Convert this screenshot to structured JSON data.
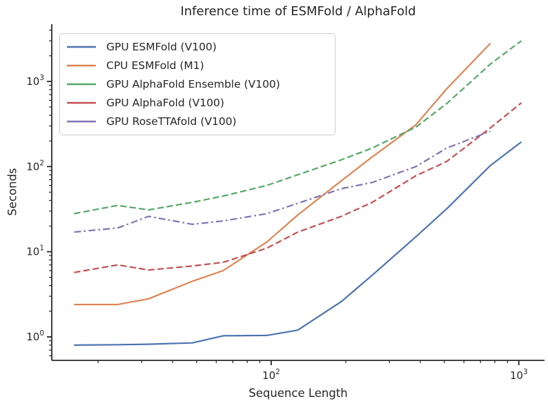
{
  "chart_data": {
    "type": "line",
    "title": "Inference time of ESMFold / AlphaFold",
    "xlabel": "Sequence Length",
    "ylabel": "Seconds",
    "x_scale": "log",
    "y_scale": "log",
    "grid": false,
    "legend_position": "upper left",
    "xlim": [
      13,
      1270
    ],
    "ylim": [
      0.53,
      4700
    ],
    "x": [
      16,
      24,
      32,
      48,
      64,
      96,
      128,
      192,
      256,
      384,
      512,
      768,
      1024
    ],
    "series": [
      {
        "name": "GPU ESMFold (V100)",
        "color": "#4C72B0",
        "line_style": "solid",
        "values": [
          0.8,
          0.81,
          0.82,
          0.85,
          1.03,
          1.04,
          1.2,
          2.6,
          5.3,
          15,
          32,
          103,
          195
        ]
      },
      {
        "name": "CPU ESMFold (M1)",
        "color": "#DD8452",
        "line_style": "solid",
        "values": [
          2.4,
          2.4,
          2.8,
          4.5,
          6,
          13,
          27,
          68,
          130,
          310,
          820,
          2800,
          null
        ]
      },
      {
        "name": "GPU AlphaFold Ensemble (V100)",
        "color": "#55A868",
        "line_style": "dashed",
        "values": [
          28,
          35,
          31,
          38,
          45,
          60,
          80,
          120,
          165,
          290,
          550,
          1600,
          3000
        ]
      },
      {
        "name": "GPU AlphaFold (V100)",
        "color": "#C44E52",
        "line_style": "dashed",
        "values": [
          5.7,
          7,
          6.1,
          6.8,
          7.5,
          11,
          17,
          26,
          38,
          78,
          115,
          285,
          560
        ]
      },
      {
        "name": "GPU RoseTTAfold (V100)",
        "color": "#8172B3",
        "line_style": "dashdot",
        "values": [
          17,
          19,
          26,
          21,
          23,
          28,
          37,
          55,
          65,
          100,
          165,
          260,
          null
        ]
      }
    ],
    "x_ticks": [
      {
        "value": 100,
        "label": "10^2"
      },
      {
        "value": 1000,
        "label": "10^3"
      }
    ],
    "y_ticks": [
      {
        "value": 1,
        "label": "10^0"
      },
      {
        "value": 10,
        "label": "10^1"
      },
      {
        "value": 100,
        "label": "10^2"
      },
      {
        "value": 1000,
        "label": "10^3"
      }
    ],
    "x_minor_ticks": [
      20,
      30,
      40,
      50,
      60,
      70,
      80,
      90,
      200,
      300,
      400,
      500,
      600,
      700,
      800,
      900
    ],
    "y_minor_ticks": [
      0.6,
      0.7,
      0.8,
      0.9,
      2,
      3,
      4,
      5,
      6,
      7,
      8,
      9,
      20,
      30,
      40,
      50,
      60,
      70,
      80,
      90,
      200,
      300,
      400,
      500,
      600,
      700,
      800,
      900,
      2000,
      3000,
      4000
    ],
    "colors": {
      "text": "#262626",
      "axis": "#262626",
      "legend_border": "#cccccc",
      "background": "#ffffff"
    }
  }
}
